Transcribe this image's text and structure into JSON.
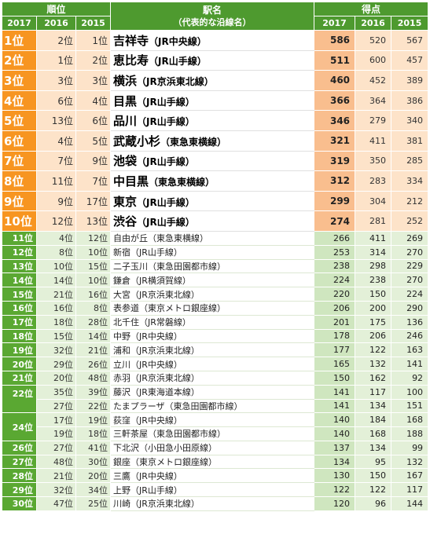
{
  "header": {
    "rank_group": "順位",
    "station_title": "駅名",
    "station_sub": "（代表的な沿線名）",
    "score_group": "得点",
    "years": [
      "2017",
      "2016",
      "2015"
    ]
  },
  "top_rows": [
    {
      "rank": "1位",
      "r2016": "2位",
      "r2015": "1位",
      "station": "吉祥寺",
      "line": "（JR中央線）",
      "s2017": "586",
      "s2016": "520",
      "s2015": "567"
    },
    {
      "rank": "2位",
      "r2016": "1位",
      "r2015": "2位",
      "station": "恵比寿",
      "line": "（JR山手線）",
      "s2017": "511",
      "s2016": "600",
      "s2015": "457"
    },
    {
      "rank": "3位",
      "r2016": "3位",
      "r2015": "3位",
      "station": "横浜",
      "line": "（JR京浜東北線）",
      "s2017": "460",
      "s2016": "452",
      "s2015": "389"
    },
    {
      "rank": "4位",
      "r2016": "6位",
      "r2015": "4位",
      "station": "目黒",
      "line": "（JR山手線）",
      "s2017": "366",
      "s2016": "364",
      "s2015": "386"
    },
    {
      "rank": "5位",
      "r2016": "13位",
      "r2015": "6位",
      "station": "品川",
      "line": "（JR山手線）",
      "s2017": "346",
      "s2016": "279",
      "s2015": "340"
    },
    {
      "rank": "6位",
      "r2016": "4位",
      "r2015": "5位",
      "station": "武蔵小杉",
      "line": "（東急東横線）",
      "s2017": "321",
      "s2016": "411",
      "s2015": "381"
    },
    {
      "rank": "7位",
      "r2016": "7位",
      "r2015": "9位",
      "station": "池袋",
      "line": "（JR山手線）",
      "s2017": "319",
      "s2016": "350",
      "s2015": "285"
    },
    {
      "rank": "8位",
      "r2016": "11位",
      "r2015": "7位",
      "station": "中目黒",
      "line": "（東急東横線）",
      "s2017": "312",
      "s2016": "283",
      "s2015": "334"
    },
    {
      "rank": "9位",
      "r2016": "9位",
      "r2015": "17位",
      "station": "東京",
      "line": "（JR山手線）",
      "s2017": "299",
      "s2016": "304",
      "s2015": "212"
    },
    {
      "rank": "10位",
      "r2016": "12位",
      "r2015": "13位",
      "station": "渋谷",
      "line": "（JR山手線）",
      "s2017": "274",
      "s2016": "281",
      "s2015": "252"
    }
  ],
  "rows": [
    {
      "rank": "11位",
      "r2016": "4位",
      "r2015": "12位",
      "name": "自由が丘（東急東横線）",
      "s2017": "266",
      "s2016": "411",
      "s2015": "269"
    },
    {
      "rank": "12位",
      "r2016": "8位",
      "r2015": "10位",
      "name": "新宿（JR山手線）",
      "s2017": "253",
      "s2016": "314",
      "s2015": "270"
    },
    {
      "rank": "13位",
      "r2016": "10位",
      "r2015": "15位",
      "name": "二子玉川（東急田園都市線）",
      "s2017": "238",
      "s2016": "298",
      "s2015": "229"
    },
    {
      "rank": "14位",
      "r2016": "14位",
      "r2015": "10位",
      "name": "鎌倉（JR横須賀線）",
      "s2017": "224",
      "s2016": "238",
      "s2015": "270"
    },
    {
      "rank": "15位",
      "r2016": "21位",
      "r2015": "16位",
      "name": "大宮（JR京浜東北線）",
      "s2017": "220",
      "s2016": "150",
      "s2015": "224"
    },
    {
      "rank": "16位",
      "r2016": "16位",
      "r2015": "8位",
      "name": "表参道（東京メトロ銀座線）",
      "s2017": "206",
      "s2016": "200",
      "s2015": "290"
    },
    {
      "rank": "17位",
      "r2016": "18位",
      "r2015": "28位",
      "name": "北千住（JR常磐線）",
      "s2017": "201",
      "s2016": "175",
      "s2015": "136"
    },
    {
      "rank": "18位",
      "r2016": "15位",
      "r2015": "14位",
      "name": "中野（JR中央線）",
      "s2017": "178",
      "s2016": "206",
      "s2015": "246"
    },
    {
      "rank": "19位",
      "r2016": "32位",
      "r2015": "21位",
      "name": "浦和（JR京浜東北線）",
      "s2017": "177",
      "s2016": "122",
      "s2015": "163"
    },
    {
      "rank": "20位",
      "r2016": "29位",
      "r2015": "26位",
      "name": "立川（JR中央線）",
      "s2017": "165",
      "s2016": "132",
      "s2015": "141"
    },
    {
      "rank": "21位",
      "r2016": "20位",
      "r2015": "48位",
      "name": "赤羽（JR京浜東北線）",
      "s2017": "150",
      "s2016": "162",
      "s2015": "92"
    },
    {
      "rank": "22位",
      "r2016": "35位",
      "r2015": "39位",
      "name": "藤沢（JR東海道本線）",
      "s2017": "141",
      "s2016": "117",
      "s2015": "100"
    },
    {
      "rank": "",
      "r2016": "27位",
      "r2015": "22位",
      "name": "たまプラーザ（東急田園都市線）",
      "s2017": "141",
      "s2016": "134",
      "s2015": "151"
    },
    {
      "rank": "24位",
      "r2016": "17位",
      "r2015": "19位",
      "name": "荻窪（JR中央線）",
      "s2017": "140",
      "s2016": "184",
      "s2015": "168"
    },
    {
      "rank": "",
      "r2016": "19位",
      "r2015": "18位",
      "name": "三軒茶屋（東急田園都市線）",
      "s2017": "140",
      "s2016": "168",
      "s2015": "188"
    },
    {
      "rank": "26位",
      "r2016": "27位",
      "r2015": "41位",
      "name": "下北沢（小田急小田原線）",
      "s2017": "137",
      "s2016": "134",
      "s2015": "99"
    },
    {
      "rank": "27位",
      "r2016": "48位",
      "r2015": "30位",
      "name": "銀座（東京メトロ銀座線）",
      "s2017": "134",
      "s2016": "95",
      "s2015": "132"
    },
    {
      "rank": "28位",
      "r2016": "21位",
      "r2015": "20位",
      "name": "三鷹（JR中央線）",
      "s2017": "130",
      "s2016": "150",
      "s2015": "167"
    },
    {
      "rank": "29位",
      "r2016": "32位",
      "r2015": "34位",
      "name": "上野（JR山手線）",
      "s2017": "122",
      "s2016": "122",
      "s2015": "117"
    },
    {
      "rank": "30位",
      "r2016": "47位",
      "r2015": "25位",
      "name": "川崎（JR京浜東北線）",
      "s2017": "120",
      "s2016": "96",
      "s2015": "144"
    }
  ]
}
